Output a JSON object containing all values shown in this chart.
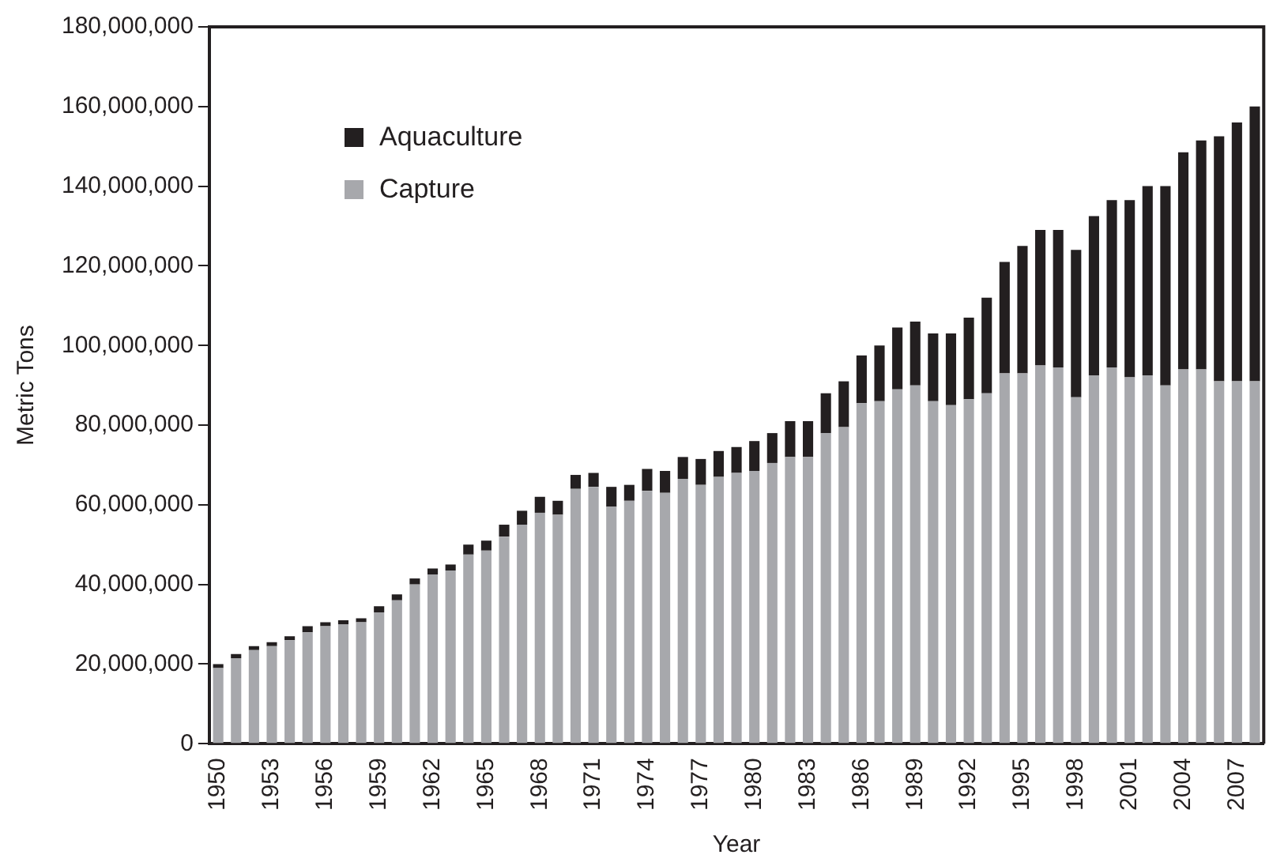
{
  "chart_data": {
    "type": "bar",
    "stacked": true,
    "xlabel": "Year",
    "ylabel": "Metric Tons",
    "categories": [
      "1950",
      null,
      null,
      "1953",
      null,
      null,
      "1956",
      null,
      null,
      "1959",
      null,
      null,
      "1962",
      null,
      null,
      "1965",
      null,
      null,
      "1968",
      null,
      null,
      "1971",
      null,
      null,
      "1974",
      null,
      null,
      "1977",
      null,
      null,
      "1980",
      null,
      null,
      "1983",
      null,
      null,
      "1986",
      null,
      null,
      "1989",
      null,
      null,
      "1992",
      null,
      null,
      "1995",
      null,
      null,
      "1998",
      null,
      null,
      "2001",
      null,
      null,
      "2004",
      null,
      null,
      "2007",
      null
    ],
    "series": [
      {
        "name": "Capture",
        "color": "#a7a8ac",
        "values": [
          19000000,
          21500000,
          23500000,
          24500000,
          26000000,
          28000000,
          29500000,
          30000000,
          30500000,
          33000000,
          36000000,
          40000000,
          42500000,
          43500000,
          47500000,
          48500000,
          52000000,
          55000000,
          58000000,
          57500000,
          64000000,
          64500000,
          59500000,
          61000000,
          63500000,
          63000000,
          66500000,
          65000000,
          67000000,
          68000000,
          68500000,
          70500000,
          72000000,
          72000000,
          78000000,
          79500000,
          85500000,
          86000000,
          89000000,
          90000000,
          86000000,
          85000000,
          86500000,
          88000000,
          93000000,
          93000000,
          95000000,
          94500000,
          87000000,
          92500000,
          94500000,
          92000000,
          92500000,
          90000000,
          94000000,
          94000000,
          91000000,
          91000000,
          91000000
        ]
      },
      {
        "name": "Aquaculture",
        "color": "#231f20",
        "values": [
          1000000,
          1000000,
          1000000,
          1000000,
          1000000,
          1500000,
          1000000,
          1000000,
          1000000,
          1500000,
          1500000,
          1500000,
          1500000,
          1500000,
          2500000,
          2500000,
          3000000,
          3500000,
          4000000,
          3500000,
          3500000,
          3500000,
          5000000,
          4000000,
          5500000,
          5500000,
          5500000,
          6500000,
          6500000,
          6500000,
          7500000,
          7500000,
          9000000,
          9000000,
          10000000,
          11500000,
          12000000,
          14000000,
          15500000,
          16000000,
          17000000,
          18000000,
          20500000,
          24000000,
          28000000,
          32000000,
          34000000,
          34500000,
          37000000,
          40000000,
          42000000,
          44500000,
          47500000,
          50000000,
          54500000,
          57500000,
          61500000,
          65000000,
          69000000
        ]
      }
    ],
    "ylim": [
      0,
      180000000
    ],
    "yticks": [
      {
        "value": 0,
        "label": "0"
      },
      {
        "value": 20000000,
        "label": "20,000,000"
      },
      {
        "value": 40000000,
        "label": "40,000,000"
      },
      {
        "value": 60000000,
        "label": "60,000,000"
      },
      {
        "value": 80000000,
        "label": "80,000,000"
      },
      {
        "value": 100000000,
        "label": "100,000,000"
      },
      {
        "value": 120000000,
        "label": "120,000,000"
      },
      {
        "value": 140000000,
        "label": "140,000,000"
      },
      {
        "value": 160000000,
        "label": "160,000,000"
      },
      {
        "value": 180000000,
        "label": "180,000,000"
      }
    ],
    "grid": false,
    "legend": "top left"
  }
}
